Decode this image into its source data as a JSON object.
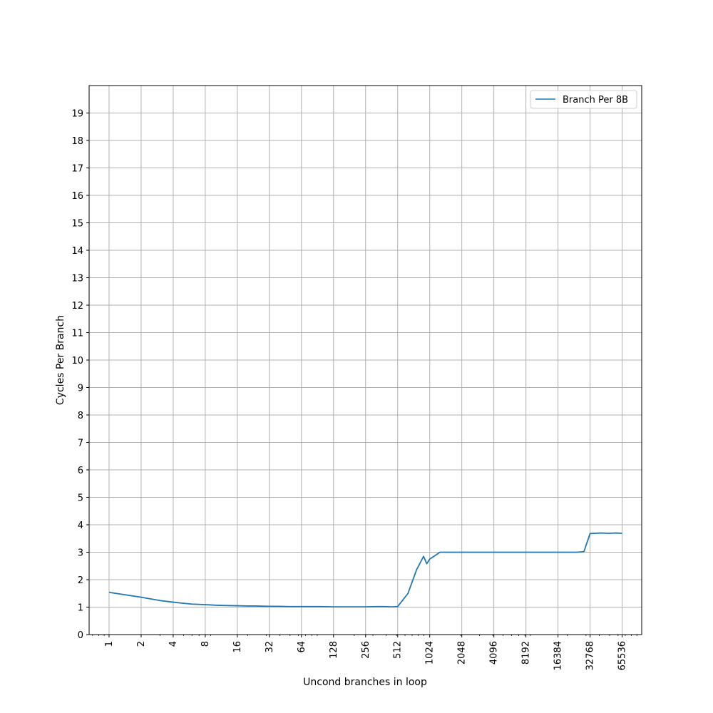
{
  "chart_data": {
    "type": "line",
    "xlabel": "Uncond branches in loop",
    "ylabel": "Cycles Per Branch",
    "x_scale": "log2",
    "xlim": [
      0.65,
      100000
    ],
    "ylim": [
      0,
      20
    ],
    "x_ticks": [
      1,
      2,
      4,
      8,
      16,
      32,
      64,
      128,
      256,
      512,
      1024,
      2048,
      4096,
      8192,
      16384,
      32768,
      65536
    ],
    "x_tick_labels": [
      "1",
      "2",
      "4",
      "8",
      "16",
      "32",
      "64",
      "128",
      "256",
      "512",
      "1024",
      "2048",
      "4096",
      "8192",
      "16384",
      "32768",
      "65536"
    ],
    "y_ticks": [
      0,
      1,
      2,
      3,
      4,
      5,
      6,
      7,
      8,
      9,
      10,
      11,
      12,
      13,
      14,
      15,
      16,
      17,
      18,
      19
    ],
    "y_tick_labels": [
      "0",
      "1",
      "2",
      "3",
      "4",
      "5",
      "6",
      "7",
      "8",
      "9",
      "10",
      "11",
      "12",
      "13",
      "14",
      "15",
      "16",
      "17",
      "18",
      "19"
    ],
    "grid": true,
    "legend_position": "top-right",
    "series": [
      {
        "name": "Branch Per 8B",
        "color": "#1f77b4",
        "x": [
          1,
          2,
          3,
          4,
          5,
          6,
          8,
          10,
          12,
          16,
          20,
          24,
          32,
          40,
          48,
          64,
          80,
          96,
          128,
          160,
          192,
          256,
          320,
          384,
          448,
          512,
          640,
          768,
          896,
          960,
          1024,
          1280,
          1536,
          2048,
          3072,
          4096,
          6144,
          8192,
          12288,
          16384,
          24576,
          28672,
          32768,
          40960,
          49152,
          57344,
          65536
        ],
        "y": [
          1.54,
          1.36,
          1.24,
          1.18,
          1.14,
          1.11,
          1.09,
          1.07,
          1.06,
          1.05,
          1.04,
          1.04,
          1.03,
          1.03,
          1.02,
          1.02,
          1.02,
          1.02,
          1.01,
          1.01,
          1.01,
          1.01,
          1.02,
          1.02,
          1.01,
          1.02,
          1.5,
          2.35,
          2.85,
          2.58,
          2.75,
          3.0,
          3.0,
          3.0,
          3.0,
          3.0,
          3.0,
          3.0,
          3.0,
          3.0,
          3.0,
          3.02,
          3.68,
          3.7,
          3.69,
          3.7,
          3.69
        ]
      }
    ]
  }
}
